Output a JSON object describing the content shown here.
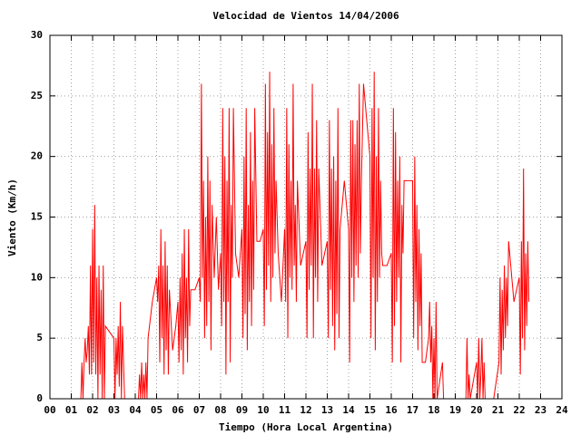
{
  "chart_data": {
    "type": "line",
    "title": "Velocidad de Vientos 14/04/2006",
    "x_label": "Tiempo (Hora Local Argentina)",
    "y_label": "Viento (Km/h)",
    "color": "#ff0000",
    "grid": true,
    "xlim": [
      0,
      24
    ],
    "ylim": [
      0,
      30
    ],
    "xticks": [
      {
        "value": 0,
        "label": "00"
      },
      {
        "value": 1,
        "label": "01"
      },
      {
        "value": 2,
        "label": "02"
      },
      {
        "value": 3,
        "label": "03"
      },
      {
        "value": 4,
        "label": "04"
      },
      {
        "value": 5,
        "label": "05"
      },
      {
        "value": 6,
        "label": "06"
      },
      {
        "value": 7,
        "label": "07"
      },
      {
        "value": 8,
        "label": "08"
      },
      {
        "value": 9,
        "label": "09"
      },
      {
        "value": 10,
        "label": "10"
      },
      {
        "value": 11,
        "label": "11"
      },
      {
        "value": 12,
        "label": "12"
      },
      {
        "value": 13,
        "label": "13"
      },
      {
        "value": 14,
        "label": "14"
      },
      {
        "value": 15,
        "label": "15"
      },
      {
        "value": 16,
        "label": "16"
      },
      {
        "value": 17,
        "label": "17"
      },
      {
        "value": 18,
        "label": "18"
      },
      {
        "value": 19,
        "label": "19"
      },
      {
        "value": 20,
        "label": "20"
      },
      {
        "value": 21,
        "label": "21"
      },
      {
        "value": 22,
        "label": "22"
      },
      {
        "value": 23,
        "label": "23"
      },
      {
        "value": 24,
        "label": "24"
      }
    ],
    "yticks": [
      0,
      5,
      10,
      15,
      20,
      25,
      30
    ],
    "x": [
      1.45,
      1.5,
      1.55,
      1.6,
      1.65,
      1.7,
      1.75,
      1.8,
      1.85,
      1.9,
      1.95,
      2.0,
      2.05,
      2.1,
      2.15,
      2.2,
      2.25,
      2.3,
      2.35,
      2.4,
      2.45,
      2.5,
      2.55,
      2.6,
      3.0,
      3.05,
      3.1,
      3.15,
      3.2,
      3.25,
      3.3,
      3.35,
      3.4,
      3.45,
      3.5,
      4.15,
      4.2,
      4.25,
      4.3,
      4.35,
      4.4,
      4.45,
      4.5,
      4.55,
      4.6,
      4.8,
      5.0,
      5.05,
      5.1,
      5.15,
      5.2,
      5.25,
      5.3,
      5.35,
      5.4,
      5.45,
      5.5,
      5.55,
      5.6,
      5.75,
      5.9,
      6.0,
      6.05,
      6.1,
      6.15,
      6.2,
      6.25,
      6.3,
      6.35,
      6.4,
      6.45,
      6.5,
      6.55,
      6.6,
      6.8,
      7.0,
      7.05,
      7.1,
      7.15,
      7.2,
      7.25,
      7.3,
      7.35,
      7.4,
      7.45,
      7.5,
      7.55,
      7.6,
      7.7,
      7.8,
      7.9,
      8.0,
      8.05,
      8.1,
      8.15,
      8.2,
      8.25,
      8.3,
      8.35,
      8.4,
      8.45,
      8.5,
      8.55,
      8.6,
      8.7,
      8.85,
      9.0,
      9.05,
      9.1,
      9.15,
      9.2,
      9.25,
      9.3,
      9.35,
      9.4,
      9.45,
      9.5,
      9.55,
      9.6,
      9.7,
      9.85,
      10.0,
      10.05,
      10.1,
      10.15,
      10.2,
      10.25,
      10.3,
      10.35,
      10.4,
      10.45,
      10.5,
      10.55,
      10.6,
      10.7,
      10.85,
      11.0,
      11.05,
      11.1,
      11.15,
      11.2,
      11.25,
      11.3,
      11.35,
      11.4,
      11.45,
      11.5,
      11.55,
      11.6,
      11.75,
      12.0,
      12.05,
      12.1,
      12.15,
      12.2,
      12.25,
      12.3,
      12.35,
      12.4,
      12.45,
      12.5,
      12.55,
      12.6,
      12.75,
      13.0,
      13.05,
      13.1,
      13.15,
      13.2,
      13.25,
      13.3,
      13.35,
      13.4,
      13.45,
      13.5,
      13.55,
      13.6,
      13.8,
      14.0,
      14.05,
      14.1,
      14.15,
      14.2,
      14.25,
      14.3,
      14.35,
      14.4,
      14.45,
      14.5,
      14.55,
      14.6,
      14.7,
      15.0,
      15.05,
      15.1,
      15.15,
      15.2,
      15.25,
      15.3,
      15.35,
      15.4,
      15.45,
      15.5,
      15.55,
      15.6,
      15.8,
      16.0,
      16.05,
      16.1,
      16.15,
      16.2,
      16.25,
      16.3,
      16.35,
      16.4,
      16.45,
      16.5,
      16.55,
      16.6,
      16.8,
      17.0,
      17.05,
      17.1,
      17.15,
      17.2,
      17.25,
      17.3,
      17.35,
      17.4,
      17.45,
      17.6,
      17.75,
      17.8,
      17.85,
      17.9,
      17.95,
      18.0,
      18.05,
      18.1,
      18.15,
      18.4,
      18.45,
      19.5,
      19.55,
      19.6,
      19.65,
      19.7,
      20.0,
      20.05,
      20.1,
      20.15,
      20.2,
      20.25,
      20.3,
      20.35,
      20.4,
      20.8,
      21.05,
      21.1,
      21.15,
      21.2,
      21.25,
      21.3,
      21.35,
      21.4,
      21.45,
      21.5,
      21.75,
      22.0,
      22.05,
      22.1,
      22.15,
      22.2,
      22.25,
      22.3,
      22.35,
      22.4,
      22.45
    ],
    "values": [
      0,
      3,
      0,
      3,
      5,
      3,
      4,
      6,
      2,
      11,
      2,
      14,
      3,
      16,
      2,
      10,
      0,
      11,
      2,
      9,
      0,
      11,
      0,
      6,
      5,
      0,
      5,
      2,
      6,
      1,
      8,
      0,
      6,
      3,
      0,
      0,
      2,
      0,
      3,
      0,
      2,
      0,
      3,
      0,
      5,
      8,
      10,
      8,
      11,
      3,
      14,
      5,
      11,
      2,
      13,
      4,
      11,
      2,
      9,
      4,
      6,
      8,
      3,
      10,
      4,
      12,
      2,
      14,
      5,
      10,
      3,
      14,
      6,
      9,
      9,
      10,
      8,
      26,
      10,
      18,
      5,
      15,
      6,
      20,
      8,
      18,
      4,
      16,
      10,
      15,
      9,
      12,
      6,
      24,
      8,
      20,
      2,
      18,
      8,
      24,
      3,
      16,
      10,
      24,
      12,
      10,
      14,
      5,
      20,
      7,
      24,
      4,
      16,
      8,
      22,
      6,
      18,
      9,
      24,
      13,
      13,
      14,
      6,
      26,
      9,
      22,
      11,
      27,
      8,
      21,
      10,
      24,
      12,
      18,
      12,
      8,
      14,
      8,
      24,
      5,
      21,
      10,
      18,
      9,
      26,
      11,
      16,
      8,
      18,
      11,
      13,
      5,
      22,
      9,
      19,
      11,
      26,
      5,
      19,
      10,
      23,
      8,
      19,
      11,
      13,
      5,
      23,
      9,
      19,
      6,
      20,
      4,
      18,
      7,
      24,
      5,
      14,
      18,
      14,
      3,
      23,
      10,
      23,
      8,
      21,
      11,
      23,
      10,
      26,
      12,
      18,
      26,
      20,
      5,
      24,
      10,
      27,
      4,
      20,
      8,
      24,
      10,
      18,
      12,
      11,
      11,
      12,
      3,
      24,
      6,
      22,
      8,
      18,
      10,
      20,
      3,
      16,
      12,
      18,
      18,
      18,
      5,
      20,
      8,
      16,
      4,
      14,
      6,
      12,
      3,
      3,
      5,
      8,
      3,
      6,
      0,
      5,
      0,
      8,
      0,
      3,
      0,
      0,
      5,
      0,
      2,
      0,
      3,
      0,
      5,
      0,
      2,
      5,
      0,
      3,
      0,
      0,
      3,
      10,
      2,
      9,
      4,
      11,
      5,
      10,
      6,
      13,
      8,
      10,
      2,
      13,
      5,
      19,
      4,
      12,
      6,
      13,
      8
    ]
  }
}
